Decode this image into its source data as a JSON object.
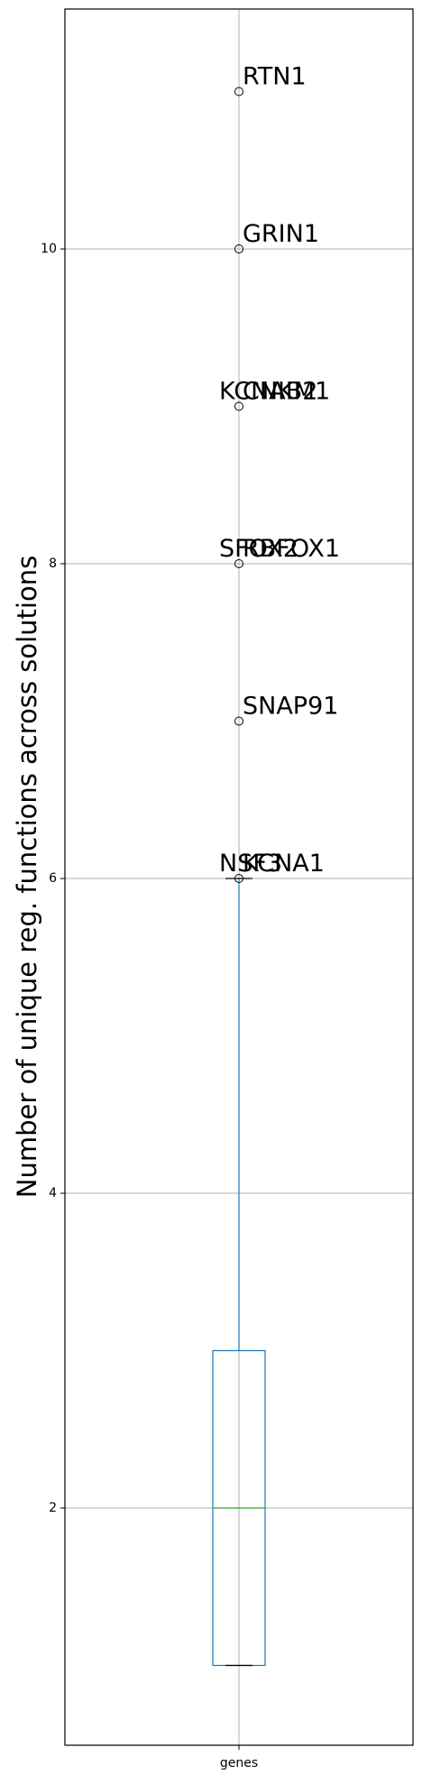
{
  "chart_data": {
    "type": "box",
    "category": "genes",
    "ylabel": "Number of unique reg. functions across solutions",
    "ylim": [
      0.55,
      11.5
    ],
    "yticks": [
      2,
      4,
      6,
      8,
      10
    ],
    "grid": true,
    "box": {
      "whisker_low": 1,
      "q1": 1,
      "median": 2,
      "q3": 3,
      "whisker_high": 6
    },
    "outliers": [
      {
        "value": 11,
        "labels": [
          "RTN1"
        ]
      },
      {
        "value": 10,
        "labels": [
          "GRIN1"
        ]
      },
      {
        "value": 9,
        "labels": [
          "CNKM1",
          "KCNAB2"
        ]
      },
      {
        "value": 8,
        "labels": [
          "RBFOX1",
          "SFOX2"
        ]
      },
      {
        "value": 7,
        "labels": [
          "SNAP91"
        ]
      },
      {
        "value": 6,
        "labels": [
          "KCNA1",
          "NSF3"
        ]
      }
    ],
    "colors": {
      "box": "#1f77b4",
      "median": "#2ca02c",
      "grid": "#b0b0b0"
    }
  }
}
